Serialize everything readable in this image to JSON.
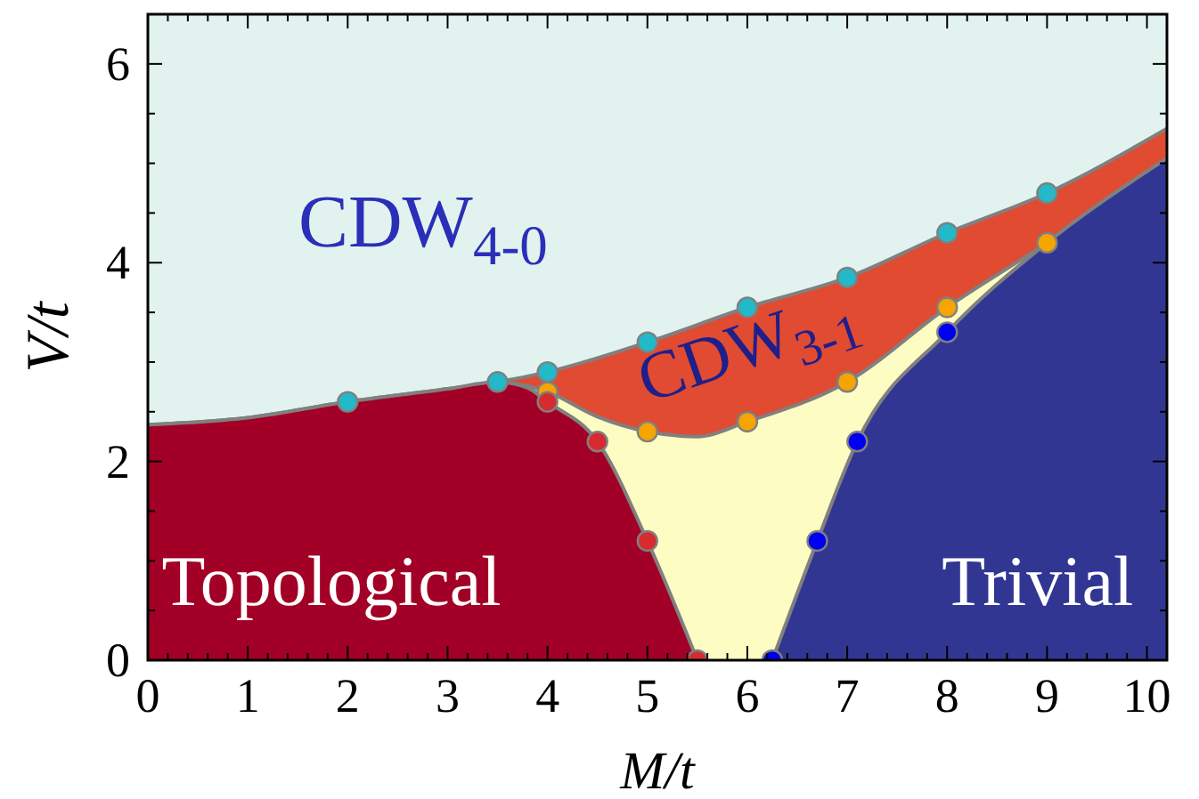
{
  "chart_data": {
    "type": "area",
    "xlabel": "M/t",
    "ylabel": "V/t",
    "xlim": [
      0,
      10.2
    ],
    "ylim": [
      0,
      6.5
    ],
    "xticks": [
      0,
      {
        "value": 0.2,
        "label": null
      },
      {
        "value": 0.4,
        "label": null
      },
      {
        "value": 0.6,
        "label": null
      },
      {
        "value": 0.8,
        "label": null
      },
      1,
      {
        "value": 1.2,
        "label": null
      },
      {
        "value": 1.4,
        "label": null
      },
      {
        "value": 1.6,
        "label": null
      },
      {
        "value": 1.8,
        "label": null
      },
      2,
      {
        "value": 2.2,
        "label": null
      },
      {
        "value": 2.4,
        "label": null
      },
      {
        "value": 2.6,
        "label": null
      },
      {
        "value": 2.8,
        "label": null
      },
      3,
      {
        "value": 3.2,
        "label": null
      },
      {
        "value": 3.4,
        "label": null
      },
      {
        "value": 3.6,
        "label": null
      },
      {
        "value": 3.8,
        "label": null
      },
      4,
      {
        "value": 4.2,
        "label": null
      },
      {
        "value": 4.4,
        "label": null
      },
      {
        "value": 4.6,
        "label": null
      },
      {
        "value": 4.8,
        "label": null
      },
      5,
      {
        "value": 5.2,
        "label": null
      },
      {
        "value": 5.4,
        "label": null
      },
      {
        "value": 5.6,
        "label": null
      },
      {
        "value": 5.8,
        "label": null
      },
      6,
      {
        "value": 6.2,
        "label": null
      },
      {
        "value": 6.4,
        "label": null
      },
      {
        "value": 6.6,
        "label": null
      },
      {
        "value": 6.8,
        "label": null
      },
      7,
      {
        "value": 7.2,
        "label": null
      },
      {
        "value": 7.4,
        "label": null
      },
      {
        "value": 7.6,
        "label": null
      },
      {
        "value": 7.8,
        "label": null
      },
      8,
      {
        "value": 8.2,
        "label": null
      },
      {
        "value": 8.4,
        "label": null
      },
      {
        "value": 8.6,
        "label": null
      },
      {
        "value": 8.8,
        "label": null
      },
      9,
      {
        "value": 9.2,
        "label": null
      },
      {
        "value": 9.4,
        "label": null
      },
      {
        "value": 9.6,
        "label": null
      },
      {
        "value": 9.8,
        "label": null
      },
      10,
      {
        "value": 10.2,
        "label": null
      }
    ],
    "yticks": [
      0,
      {
        "value": 0.5,
        "label": null
      },
      {
        "value": 1,
        "label": null
      },
      {
        "value": 1.5,
        "label": null
      },
      2,
      {
        "value": 2.5,
        "label": null
      },
      {
        "value": 3,
        "label": null
      },
      {
        "value": 3.5,
        "label": null
      },
      4,
      {
        "value": 4.5,
        "label": null
      },
      {
        "value": 5,
        "label": null
      },
      {
        "value": 5.5,
        "label": null
      },
      6,
      {
        "value": 6.5,
        "label": null
      }
    ],
    "series": [
      {
        "color": "#e04b32",
        "x": [
          0,
          1,
          2,
          3,
          3.5,
          4,
          5,
          6,
          7,
          8,
          9,
          10.2
        ],
        "values": [
          2.37,
          2.44,
          2.6,
          2.73,
          2.8,
          2.9,
          3.2,
          3.55,
          3.85,
          4.3,
          4.7,
          5.35
        ]
      },
      {
        "color": "#fdfcc2",
        "x": [
          3.5,
          3.8,
          4,
          4.5,
          5,
          5.5,
          6,
          7,
          8,
          9,
          10.2
        ],
        "values": [
          2.8,
          2.76,
          2.7,
          2.45,
          2.3,
          2.25,
          2.4,
          2.8,
          3.55,
          4.2,
          5.05
        ]
      },
      {
        "color": "#a20026",
        "x": [
          0,
          1,
          2,
          3,
          3.5,
          3.8,
          4,
          4.5,
          5,
          5.5
        ],
        "values": [
          2.37,
          2.44,
          2.6,
          2.73,
          2.8,
          2.74,
          2.6,
          2.2,
          1.2,
          0
        ]
      },
      {
        "color": "#323693",
        "x": [
          6.25,
          6.7,
          7.1,
          8,
          9,
          10.2
        ],
        "values": [
          0,
          1.2,
          2.2,
          3.3,
          4.2,
          5.05
        ]
      },
      {
        "type": "scatter",
        "marker": "circle",
        "color": "#22b9c9",
        "x": [
          2,
          3.5,
          4,
          5,
          6,
          7,
          8,
          9
        ],
        "values": [
          2.6,
          2.8,
          2.9,
          3.2,
          3.55,
          3.85,
          4.3,
          4.7
        ]
      },
      {
        "type": "scatter",
        "marker": "circle",
        "color": "#f6a400",
        "x": [
          4,
          5,
          6,
          7,
          8,
          9
        ],
        "values": [
          2.7,
          2.3,
          2.4,
          2.8,
          3.55,
          4.2
        ]
      },
      {
        "type": "scatter",
        "marker": "circle",
        "color": "#d62b2f",
        "x": [
          4,
          4.5,
          5,
          5.5
        ],
        "values": [
          2.6,
          2.2,
          1.2,
          0
        ]
      },
      {
        "type": "scatter",
        "marker": "circle",
        "color": "#0000f0",
        "x": [
          6.25,
          6.7,
          7.1,
          8
        ],
        "values": [
          0,
          1.2,
          2.2,
          3.3
        ]
      }
    ],
    "annotations": [
      "CDW$_{4-0}$",
      "CDW$_{3-1}$",
      "Topological",
      "Trivial"
    ]
  }
}
